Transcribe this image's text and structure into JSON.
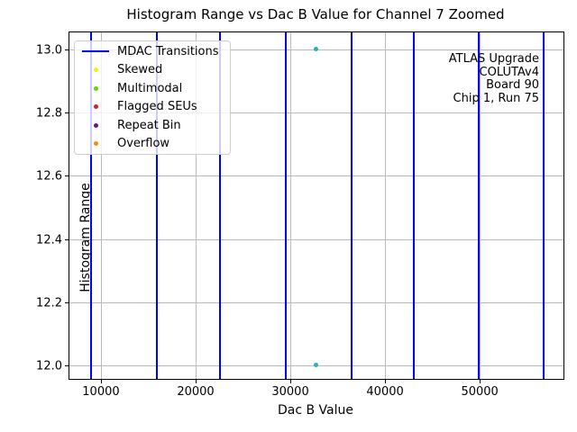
{
  "title": "Histogram Range vs Dac B Value for Channel 7 Zoomed",
  "axes": {
    "xlabel": "Dac B Value",
    "ylabel": "Histogram Range"
  },
  "legend": {
    "items": [
      {
        "label": "MDAC Transitions",
        "type": "line",
        "color": "#0000ff"
      },
      {
        "label": "Skewed",
        "type": "dot",
        "color": "#f2f20a"
      },
      {
        "label": "Multimodal",
        "type": "dot",
        "color": "#67d405"
      },
      {
        "label": "Flagged SEUs",
        "type": "dot",
        "color": "#cc2427"
      },
      {
        "label": "Repeat Bin",
        "type": "dot",
        "color": "#7a0f85"
      },
      {
        "label": "Overflow",
        "type": "dot",
        "color": "#f98b0f"
      }
    ]
  },
  "annotation": {
    "lines": [
      "ATLAS Upgrade",
      "COLUTAv4",
      "Board 90",
      "Chip 1, Run 75"
    ]
  },
  "chart_data": {
    "type": "scatter",
    "title": "Histogram Range vs Dac B Value for Channel 7 Zoomed",
    "xlabel": "Dac B Value",
    "ylabel": "Histogram Range",
    "xlim": [
      6670,
      58840
    ],
    "ylim": [
      11.957,
      13.054
    ],
    "xticks": [
      10000,
      20000,
      30000,
      40000,
      50000
    ],
    "yticks": [
      12.0,
      12.2,
      12.4,
      12.6,
      12.8,
      13.0
    ],
    "grid": true,
    "grid_color": "#bababa",
    "legend_position": "upper left",
    "vlines": {
      "label": "MDAC Transitions",
      "color": "#0000ff",
      "values": [
        8950,
        15885,
        22565,
        29525,
        36455,
        43035,
        49905,
        56745
      ]
    },
    "points": [
      {
        "x": 32750,
        "y": 13.0,
        "color": "#1db8b8"
      },
      {
        "x": 32750,
        "y": 12.0,
        "color": "#1db8b8"
      }
    ]
  }
}
